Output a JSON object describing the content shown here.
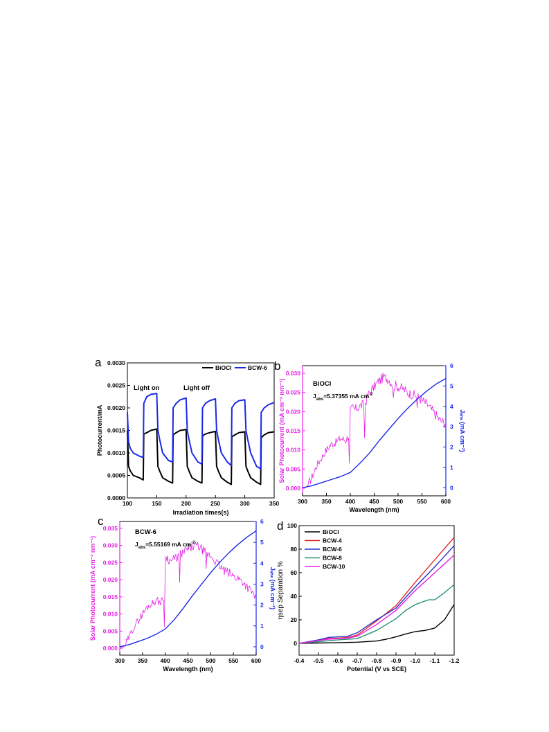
{
  "colors": {
    "magenta": "#e61ee6",
    "blue": "#1a28e6",
    "black": "#000000"
  },
  "chart_data": [
    {
      "panel": "a",
      "type": "line",
      "xlabel": "Irradiation times(s)",
      "ylabel": "Photocurrent/mA",
      "xlim": [
        100,
        350
      ],
      "ylim": [
        0,
        0.003
      ],
      "xticks": [
        "100",
        "150",
        "200",
        "250",
        "300",
        "350"
      ],
      "yticks": [
        "0.0000",
        "0.0005",
        "0.0010",
        "0.0015",
        "0.0020",
        "0.0025",
        "0.0030"
      ],
      "annotations": [
        "Light on",
        "Light off"
      ],
      "legend_position": "top-right",
      "series": [
        {
          "name": "BiOCl",
          "color": "#000000",
          "x": [
            100,
            102,
            105,
            110,
            120,
            127,
            128,
            133,
            140,
            150,
            152,
            155,
            160,
            170,
            177,
            178,
            183,
            190,
            200,
            202,
            205,
            210,
            220,
            227,
            228,
            233,
            240,
            250,
            252,
            255,
            260,
            270,
            277,
            278,
            283,
            290,
            300,
            302,
            305,
            310,
            320,
            327,
            328,
            333,
            340,
            350
          ],
          "values": [
            0.0015,
            0.0007,
            0.0006,
            0.0005,
            0.00045,
            0.0004,
            0.00142,
            0.00145,
            0.0015,
            0.00153,
            0.0007,
            0.0006,
            0.00045,
            0.00037,
            0.00033,
            0.0014,
            0.00145,
            0.0015,
            0.00152,
            0.0007,
            0.0006,
            0.00045,
            0.00037,
            0.00033,
            0.00138,
            0.00142,
            0.00145,
            0.00148,
            0.0007,
            0.0006,
            0.00045,
            0.00035,
            0.0003,
            0.00136,
            0.0014,
            0.00145,
            0.00147,
            0.0007,
            0.0006,
            0.00045,
            0.00035,
            0.0003,
            0.00134,
            0.0014,
            0.00145,
            0.00147
          ]
        },
        {
          "name": "BCW-6",
          "color": "#1a28e6",
          "x": [
            100,
            102,
            105,
            110,
            120,
            127,
            128,
            133,
            140,
            150,
            152,
            155,
            160,
            170,
            177,
            178,
            183,
            190,
            200,
            202,
            205,
            210,
            220,
            227,
            228,
            233,
            240,
            250,
            252,
            255,
            260,
            270,
            277,
            278,
            283,
            290,
            300,
            302,
            305,
            310,
            320,
            327,
            328,
            333,
            340,
            350
          ],
          "values": [
            0.0019,
            0.00125,
            0.0011,
            0.001,
            0.00093,
            0.0009,
            0.0021,
            0.00225,
            0.0023,
            0.00232,
            0.0015,
            0.0013,
            0.001,
            0.00083,
            0.0008,
            0.002,
            0.0021,
            0.00218,
            0.00222,
            0.0015,
            0.0013,
            0.001,
            0.0008,
            0.00075,
            0.002,
            0.0021,
            0.00216,
            0.0022,
            0.0015,
            0.0013,
            0.001,
            0.0008,
            0.00072,
            0.002,
            0.0021,
            0.00216,
            0.00218,
            0.0015,
            0.0013,
            0.001,
            0.0007,
            0.00065,
            0.0019,
            0.002,
            0.00207,
            0.00212
          ]
        }
      ]
    },
    {
      "panel": "b",
      "type": "line",
      "xlabel": "Wavelength (nm)",
      "ylabel": "Solar Photocurrent (mA cm⁻² nm⁻¹)",
      "y2label": "Jₐₕₛ (mA cm⁻²)",
      "xlim": [
        300,
        600
      ],
      "ylim": [
        -0.002,
        0.032
      ],
      "y2lim": [
        -0.4,
        6
      ],
      "xticks": [
        "300",
        "350",
        "400",
        "450",
        "500",
        "550",
        "600"
      ],
      "yticks": [
        "0.000",
        "0.005",
        "0.010",
        "0.015",
        "0.020",
        "0.025",
        "0.030"
      ],
      "y2ticks": [
        "0",
        "1",
        "2",
        "3",
        "4",
        "5",
        "6"
      ],
      "annotations": [
        "BiOCl",
        "J",
        "abs",
        "=5.37355 mA cm",
        "-2"
      ],
      "series": [
        {
          "name": "Solar Photocurrent",
          "axis": "left",
          "color": "#e61ee6",
          "x": [
            300,
            310,
            320,
            330,
            340,
            350,
            360,
            370,
            380,
            390,
            398,
            400,
            405,
            410,
            420,
            430,
            440,
            450,
            460,
            470,
            480,
            490,
            500,
            510,
            520,
            530,
            540,
            550,
            560,
            570,
            580,
            590,
            600
          ],
          "values": [
            0.0,
            0.0005,
            0.003,
            0.006,
            0.008,
            0.01,
            0.0115,
            0.012,
            0.013,
            0.0125,
            0.014,
            0.02,
            0.021,
            0.0205,
            0.0215,
            0.022,
            0.025,
            0.0265,
            0.028,
            0.029,
            0.0285,
            0.027,
            0.0265,
            0.026,
            0.025,
            0.0245,
            0.024,
            0.023,
            0.022,
            0.0205,
            0.019,
            0.0175,
            0.017
          ]
        },
        {
          "name": "J_abs",
          "axis": "right",
          "color": "#1a28e6",
          "x": [
            300,
            320,
            340,
            360,
            380,
            400,
            420,
            440,
            460,
            480,
            500,
            520,
            540,
            560,
            580,
            600
          ],
          "values": [
            0.0,
            0.1,
            0.25,
            0.4,
            0.55,
            0.75,
            1.2,
            1.7,
            2.3,
            2.85,
            3.4,
            3.9,
            4.35,
            4.75,
            5.1,
            5.37
          ]
        }
      ]
    },
    {
      "panel": "c",
      "type": "line",
      "xlabel": "Wavelength (nm)",
      "ylabel": "Solar Photocurrent (mA cm⁻² nm⁻¹)",
      "y2label": "Jₐₕₛ (mA cm⁻²)",
      "xlim": [
        300,
        600
      ],
      "ylim": [
        -0.002,
        0.037
      ],
      "y2lim": [
        -0.4,
        6
      ],
      "xticks": [
        "300",
        "350",
        "400",
        "450",
        "500",
        "550",
        "600"
      ],
      "yticks": [
        "0.000",
        "0.005",
        "0.010",
        "0.015",
        "0.020",
        "0.025",
        "0.030",
        "0.035"
      ],
      "y2ticks": [
        "0",
        "1",
        "2",
        "3",
        "4",
        "5",
        "6"
      ],
      "annotations": [
        "BCW-6",
        "J",
        "abs",
        "=5.55169 mA cm",
        "-2"
      ],
      "series": [
        {
          "name": "Solar Photocurrent",
          "axis": "left",
          "color": "#e61ee6",
          "x": [
            300,
            310,
            320,
            330,
            340,
            350,
            360,
            370,
            380,
            390,
            398,
            400,
            405,
            410,
            420,
            430,
            440,
            450,
            460,
            470,
            480,
            490,
            500,
            510,
            520,
            530,
            540,
            550,
            560,
            570,
            580,
            590,
            600
          ],
          "values": [
            0.0,
            0.0005,
            0.003,
            0.006,
            0.008,
            0.01,
            0.012,
            0.013,
            0.014,
            0.0135,
            0.015,
            0.026,
            0.0265,
            0.0255,
            0.026,
            0.027,
            0.028,
            0.029,
            0.0295,
            0.03,
            0.029,
            0.0275,
            0.027,
            0.0255,
            0.024,
            0.0225,
            0.022,
            0.021,
            0.0205,
            0.0195,
            0.018,
            0.0165,
            0.015
          ]
        },
        {
          "name": "J_abs",
          "axis": "right",
          "color": "#1a28e6",
          "x": [
            300,
            320,
            340,
            360,
            380,
            400,
            420,
            440,
            460,
            480,
            500,
            520,
            540,
            560,
            580,
            600
          ],
          "values": [
            0.0,
            0.1,
            0.25,
            0.4,
            0.6,
            0.85,
            1.3,
            1.85,
            2.45,
            3.0,
            3.55,
            4.05,
            4.5,
            4.9,
            5.25,
            5.55
          ]
        }
      ]
    },
    {
      "panel": "d",
      "type": "line",
      "xlabel": "Potential (V vs SCE)",
      "ylabel": "ηsep Separation %",
      "xlim": [
        -0.4,
        -1.2
      ],
      "ylim": [
        -10,
        100
      ],
      "xticks": [
        "-0.4",
        "-0.5",
        "-0.6",
        "-0.7",
        "-0.8",
        "-0.9",
        "-1.0",
        "-1.1",
        "-1.2"
      ],
      "yticks": [
        "0",
        "20",
        "40",
        "60",
        "80",
        "100"
      ],
      "legend_position": "top-left",
      "series": [
        {
          "name": "BiOCl",
          "color": "#000000",
          "x": [
            -0.4,
            -0.5,
            -0.6,
            -0.7,
            -0.8,
            -0.85,
            -0.9,
            -0.95,
            -1.0,
            -1.05,
            -1.1,
            -1.15,
            -1.2
          ],
          "values": [
            0,
            0.3,
            0.5,
            1,
            2,
            3.5,
            5.5,
            8,
            10,
            11,
            13,
            20,
            33
          ]
        },
        {
          "name": "BCW-4",
          "color": "#e62828",
          "x": [
            -0.4,
            -0.5,
            -0.55,
            -0.6,
            -0.65,
            -0.7,
            -0.8,
            -0.9,
            -1.0,
            -1.1,
            -1.2
          ],
          "values": [
            0,
            2.5,
            4,
            4.5,
            5,
            7,
            19,
            32,
            52,
            71,
            90
          ]
        },
        {
          "name": "BCW-6",
          "color": "#2832c8",
          "x": [
            -0.4,
            -0.5,
            -0.55,
            -0.6,
            -0.65,
            -0.7,
            -0.8,
            -0.9,
            -1.0,
            -1.1,
            -1.2
          ],
          "values": [
            0,
            3,
            5,
            5.5,
            6,
            9,
            20,
            30,
            48,
            65,
            83
          ]
        },
        {
          "name": "BCW-8",
          "color": "#2a8f7a",
          "x": [
            -0.4,
            -0.5,
            -0.6,
            -0.7,
            -0.8,
            -0.9,
            -0.95,
            -1.0,
            -1.05,
            -1.07,
            -1.1,
            -1.15,
            -1.2
          ],
          "values": [
            0,
            1.5,
            3,
            4,
            11,
            21,
            28,
            33,
            36,
            37,
            37,
            43,
            50
          ]
        },
        {
          "name": "BCW-10",
          "color": "#e61ee6",
          "x": [
            -0.4,
            -0.5,
            -0.55,
            -0.6,
            -0.65,
            -0.7,
            -0.8,
            -0.9,
            -1.0,
            -1.1,
            -1.2
          ],
          "values": [
            0,
            2.5,
            3.5,
            4,
            4.5,
            6,
            16,
            28,
            45,
            60,
            75
          ]
        }
      ]
    }
  ]
}
